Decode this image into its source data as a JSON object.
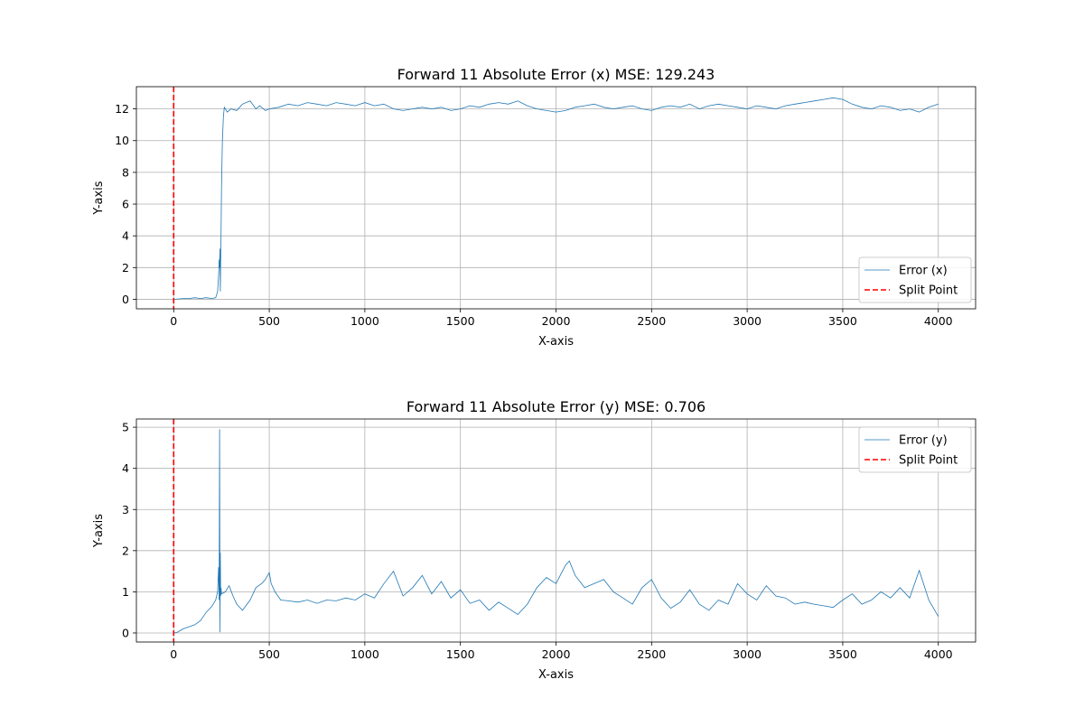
{
  "chart_data": [
    {
      "type": "line",
      "title": "Forward 11 Absolute Error (x) MSE: 129.243",
      "xlabel": "X-axis",
      "ylabel": "Y-axis",
      "xlim": [
        -195,
        4195
      ],
      "ylim": [
        -0.6,
        13.4
      ],
      "xticks": [
        0,
        500,
        1000,
        1500,
        2000,
        2500,
        3000,
        3500,
        4000
      ],
      "xtick_labels": [
        "0",
        "500",
        "1000",
        "1500",
        "2000",
        "2500",
        "3000",
        "3500",
        "4000"
      ],
      "yticks": [
        0,
        2,
        4,
        6,
        8,
        10,
        12
      ],
      "ytick_labels": [
        "0",
        "2",
        "4",
        "6",
        "8",
        "10",
        "12"
      ],
      "grid": true,
      "legend_placement": "lower right",
      "series": [
        {
          "name": "Error (x)",
          "color": "#1f77b4",
          "x": [
            0,
            20,
            50,
            80,
            110,
            140,
            170,
            200,
            220,
            230,
            235,
            238,
            240,
            242,
            244,
            246,
            248,
            250,
            255,
            260,
            265,
            270,
            280,
            300,
            330,
            360,
            400,
            430,
            450,
            480,
            500,
            550,
            600,
            650,
            700,
            750,
            800,
            850,
            900,
            950,
            1000,
            1050,
            1100,
            1150,
            1200,
            1250,
            1300,
            1350,
            1400,
            1450,
            1500,
            1550,
            1600,
            1650,
            1700,
            1750,
            1800,
            1850,
            1900,
            1950,
            2000,
            2050,
            2100,
            2150,
            2200,
            2250,
            2300,
            2350,
            2400,
            2450,
            2500,
            2550,
            2600,
            2650,
            2700,
            2750,
            2800,
            2850,
            2900,
            2950,
            3000,
            3050,
            3100,
            3150,
            3200,
            3250,
            3300,
            3350,
            3400,
            3450,
            3500,
            3550,
            3600,
            3650,
            3700,
            3750,
            3800,
            3850,
            3900,
            3950,
            4000
          ],
          "y": [
            0.0,
            0.02,
            0.05,
            0.05,
            0.1,
            0.05,
            0.1,
            0.05,
            0.1,
            0.5,
            1.5,
            2.5,
            2.0,
            3.2,
            0.5,
            2.3,
            4.0,
            7.0,
            10.0,
            11.5,
            12.1,
            12.0,
            11.8,
            12.0,
            11.9,
            12.3,
            12.5,
            12.0,
            12.2,
            11.9,
            12.0,
            12.1,
            12.3,
            12.2,
            12.4,
            12.3,
            12.2,
            12.4,
            12.3,
            12.2,
            12.4,
            12.2,
            12.3,
            12.0,
            11.9,
            12.0,
            12.1,
            12.0,
            12.1,
            11.9,
            12.0,
            12.2,
            12.1,
            12.3,
            12.4,
            12.3,
            12.5,
            12.2,
            12.0,
            11.9,
            11.8,
            11.9,
            12.1,
            12.2,
            12.3,
            12.1,
            12.0,
            12.1,
            12.2,
            12.0,
            11.9,
            12.1,
            12.2,
            12.1,
            12.3,
            12.0,
            12.2,
            12.3,
            12.2,
            12.1,
            12.0,
            12.2,
            12.1,
            12.0,
            12.2,
            12.3,
            12.4,
            12.5,
            12.6,
            12.7,
            12.6,
            12.3,
            12.1,
            12.0,
            12.2,
            12.1,
            11.9,
            12.0,
            11.8,
            12.1,
            12.3
          ]
        },
        {
          "name": "Split Point",
          "color": "#ff0000",
          "dashed": true,
          "vline_x": 0
        }
      ]
    },
    {
      "type": "line",
      "title": "Forward 11 Absolute Error (y) MSE: 0.706",
      "xlabel": "X-axis",
      "ylabel": "Y-axis",
      "xlim": [
        -195,
        4195
      ],
      "ylim": [
        -0.22,
        5.2
      ],
      "xticks": [
        0,
        500,
        1000,
        1500,
        2000,
        2500,
        3000,
        3500,
        4000
      ],
      "xtick_labels": [
        "0",
        "500",
        "1000",
        "1500",
        "2000",
        "2500",
        "3000",
        "3500",
        "4000"
      ],
      "yticks": [
        0,
        1,
        2,
        3,
        4,
        5
      ],
      "ytick_labels": [
        "0",
        "1",
        "2",
        "3",
        "4",
        "5"
      ],
      "grid": true,
      "legend_placement": "upper right",
      "series": [
        {
          "name": "Error (y)",
          "color": "#1f77b4",
          "x": [
            0,
            20,
            50,
            80,
            110,
            140,
            170,
            200,
            220,
            230,
            235,
            238,
            240,
            242,
            244,
            246,
            248,
            250,
            270,
            290,
            310,
            330,
            360,
            400,
            430,
            460,
            480,
            500,
            510,
            530,
            560,
            600,
            650,
            700,
            750,
            800,
            850,
            900,
            950,
            1000,
            1050,
            1100,
            1150,
            1200,
            1250,
            1300,
            1350,
            1400,
            1450,
            1500,
            1550,
            1600,
            1650,
            1700,
            1750,
            1800,
            1850,
            1900,
            1950,
            2000,
            2050,
            2070,
            2100,
            2150,
            2200,
            2250,
            2300,
            2350,
            2400,
            2450,
            2500,
            2550,
            2600,
            2650,
            2700,
            2750,
            2800,
            2850,
            2900,
            2950,
            3000,
            3050,
            3100,
            3150,
            3200,
            3250,
            3300,
            3350,
            3400,
            3450,
            3500,
            3550,
            3600,
            3650,
            3700,
            3750,
            3800,
            3850,
            3900,
            3950,
            4000
          ],
          "y": [
            0.0,
            0.02,
            0.1,
            0.15,
            0.2,
            0.3,
            0.5,
            0.65,
            0.8,
            1.0,
            1.6,
            0.8,
            4.95,
            0.02,
            1.95,
            0.9,
            1.1,
            0.95,
            1.0,
            1.15,
            0.9,
            0.7,
            0.55,
            0.8,
            1.1,
            1.2,
            1.3,
            1.47,
            1.2,
            1.0,
            0.8,
            0.78,
            0.75,
            0.8,
            0.72,
            0.8,
            0.78,
            0.85,
            0.8,
            0.95,
            0.85,
            1.2,
            1.5,
            0.9,
            1.1,
            1.4,
            0.95,
            1.25,
            0.85,
            1.05,
            0.72,
            0.8,
            0.55,
            0.75,
            0.6,
            0.45,
            0.7,
            1.1,
            1.35,
            1.2,
            1.65,
            1.75,
            1.4,
            1.1,
            1.2,
            1.3,
            1.0,
            0.85,
            0.7,
            1.1,
            1.3,
            0.85,
            0.6,
            0.75,
            1.05,
            0.7,
            0.55,
            0.8,
            0.7,
            1.2,
            0.95,
            0.8,
            1.15,
            0.9,
            0.85,
            0.7,
            0.75,
            0.7,
            0.66,
            0.62,
            0.8,
            0.95,
            0.7,
            0.8,
            1.0,
            0.85,
            1.1,
            0.85,
            1.52,
            0.8,
            0.4
          ]
        },
        {
          "name": "Split Point",
          "color": "#ff0000",
          "dashed": true,
          "vline_x": 0
        }
      ]
    }
  ]
}
